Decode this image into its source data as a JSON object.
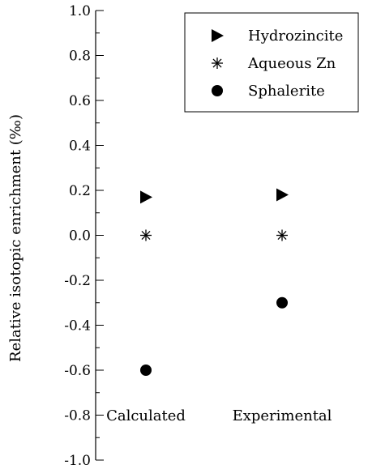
{
  "chart_data": {
    "type": "scatter",
    "title": "",
    "xlabel": "",
    "ylabel": "Relative isotopic enrichment (‰)",
    "ylim": [
      -1.0,
      1.0
    ],
    "yticks": [
      "1.0",
      "0.8",
      "0.6",
      "0.4",
      "0.2",
      "0.0",
      "-0.2",
      "-0.4",
      "-0.6",
      "-0.8",
      "-1.0"
    ],
    "categories": [
      "Calculated",
      "Experimental"
    ],
    "legend_position": "top-right",
    "series": [
      {
        "name": "Hydrozincite",
        "marker": "triangle-right",
        "values": [
          0.17,
          0.18
        ]
      },
      {
        "name": "Aqueous Zn",
        "marker": "asterisk",
        "values": [
          0.0,
          0.0
        ]
      },
      {
        "name": "Sphalerite",
        "marker": "circle",
        "values": [
          -0.6,
          -0.3
        ]
      }
    ],
    "color": "#000000"
  }
}
